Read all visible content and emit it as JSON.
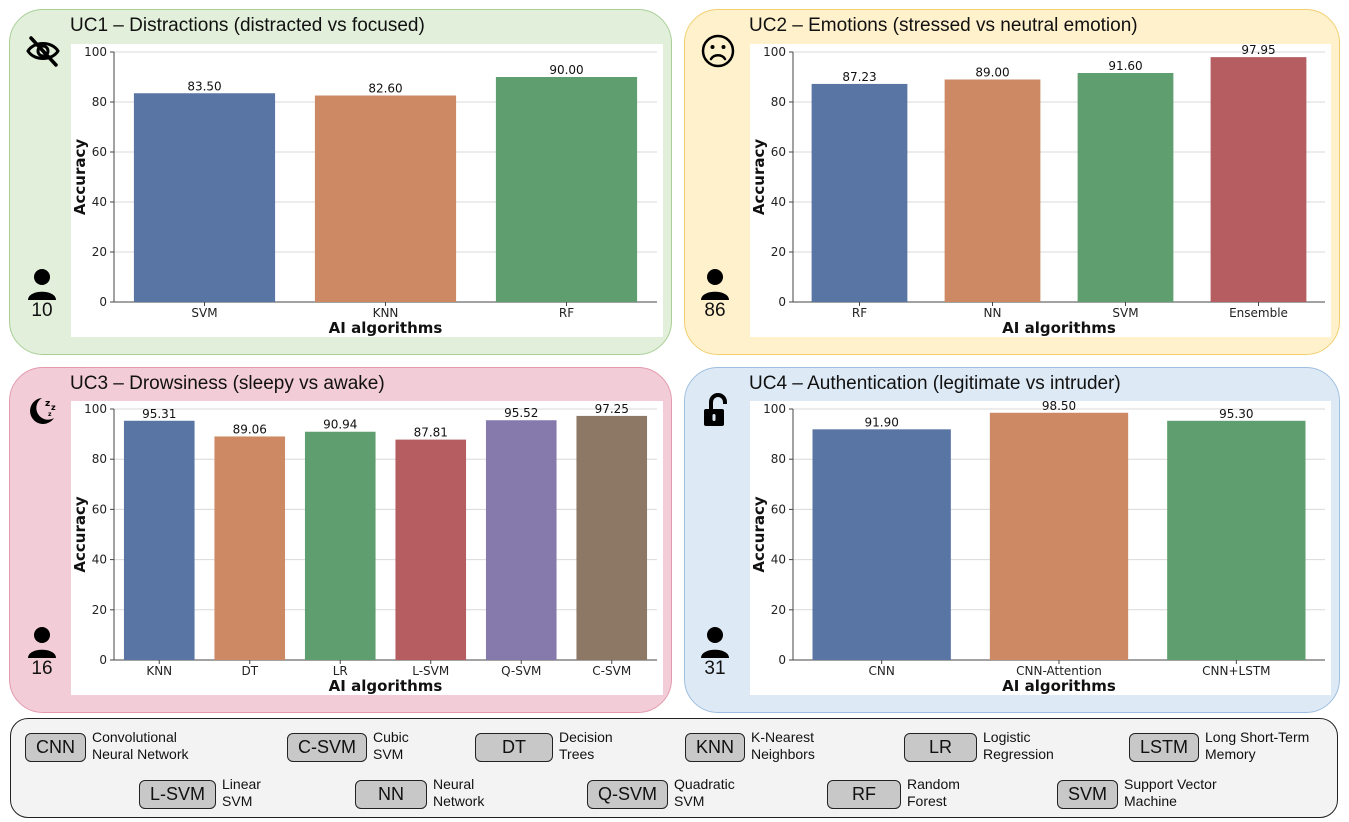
{
  "panels": [
    {
      "title": "UC1 – Distractions (distracted vs focused)",
      "participants": "10",
      "icon": "eye-slash-icon",
      "bg": "#e2efda",
      "border": "#a9cf97"
    },
    {
      "title": "UC2 – Emotions (stressed vs neutral emotion)",
      "participants": "86",
      "icon": "frown-face-icon",
      "bg": "#fff1cc",
      "border": "#f2cf70"
    },
    {
      "title": "UC3 – Drowsiness (sleepy vs awake)",
      "participants": "16",
      "icon": "moon-sleep-icon",
      "bg": "#f2ccd6",
      "border": "#e39aac"
    },
    {
      "title": "UC4 – Authentication (legitimate vs intruder)",
      "participants": "31",
      "icon": "unlock-icon",
      "bg": "#dde9f5",
      "border": "#9fbfe0"
    }
  ],
  "chart_data": [
    {
      "type": "bar",
      "categories": [
        "SVM",
        "KNN",
        "RF"
      ],
      "values": [
        83.5,
        82.6,
        90.0
      ],
      "labels": [
        "83.50",
        "82.60",
        "90.00"
      ],
      "xlabel": "AI algorithms",
      "ylabel": "Accuracy",
      "ylim": [
        0,
        100
      ],
      "yticks": [
        "0",
        "20",
        "40",
        "60",
        "80",
        "100"
      ],
      "grid": true,
      "colors": [
        "#5875a4",
        "#cc8963",
        "#5f9e6e"
      ]
    },
    {
      "type": "bar",
      "categories": [
        "RF",
        "NN",
        "SVM",
        "Ensemble"
      ],
      "values": [
        87.23,
        89.0,
        91.6,
        97.95
      ],
      "labels": [
        "87.23",
        "89.00",
        "91.60",
        "97.95"
      ],
      "xlabel": "AI algorithms",
      "ylabel": "Accuracy",
      "ylim": [
        0,
        100
      ],
      "yticks": [
        "0",
        "20",
        "40",
        "60",
        "80",
        "100"
      ],
      "grid": true,
      "colors": [
        "#5875a4",
        "#cc8963",
        "#5f9e6e",
        "#b55d60"
      ]
    },
    {
      "type": "bar",
      "categories": [
        "KNN",
        "DT",
        "LR",
        "L-SVM",
        "Q-SVM",
        "C-SVM"
      ],
      "values": [
        95.31,
        89.06,
        90.94,
        87.81,
        95.52,
        97.25
      ],
      "labels": [
        "95.31",
        "89.06",
        "90.94",
        "87.81",
        "95.52",
        "97.25"
      ],
      "xlabel": "AI algorithms",
      "ylabel": "Accuracy",
      "ylim": [
        0,
        100
      ],
      "yticks": [
        "0",
        "20",
        "40",
        "60",
        "80",
        "100"
      ],
      "grid": true,
      "colors": [
        "#5875a4",
        "#cc8963",
        "#5f9e6e",
        "#b55d60",
        "#857aab",
        "#8d7866"
      ]
    },
    {
      "type": "bar",
      "categories": [
        "CNN",
        "CNN-Attention",
        "CNN+LSTM"
      ],
      "values": [
        91.9,
        98.5,
        95.3
      ],
      "labels": [
        "91.90",
        "98.50",
        "95.30"
      ],
      "xlabel": "AI algorithms",
      "ylabel": "Accuracy",
      "ylim": [
        0,
        100
      ],
      "yticks": [
        "0",
        "20",
        "40",
        "60",
        "80",
        "100"
      ],
      "grid": true,
      "colors": [
        "#5875a4",
        "#cc8963",
        "#5f9e6e"
      ]
    }
  ],
  "legend": [
    {
      "abbr": "CNN",
      "full": "Convolutional Neural Network"
    },
    {
      "abbr": "C-SVM",
      "full": "Cubic SVM"
    },
    {
      "abbr": "DT",
      "full": "Decision Trees"
    },
    {
      "abbr": "KNN",
      "full": "K-Nearest Neighbors"
    },
    {
      "abbr": "LR",
      "full": "Logistic Regression"
    },
    {
      "abbr": "LSTM",
      "full": "Long Short-Term Memory"
    },
    {
      "abbr": "L-SVM",
      "full": "Linear SVM"
    },
    {
      "abbr": "NN",
      "full": "Neural Network"
    },
    {
      "abbr": "Q-SVM",
      "full": "Quadratic SVM"
    },
    {
      "abbr": "RF",
      "full": "Random Forest"
    },
    {
      "abbr": "SVM",
      "full": "Support Vector Machine"
    }
  ]
}
